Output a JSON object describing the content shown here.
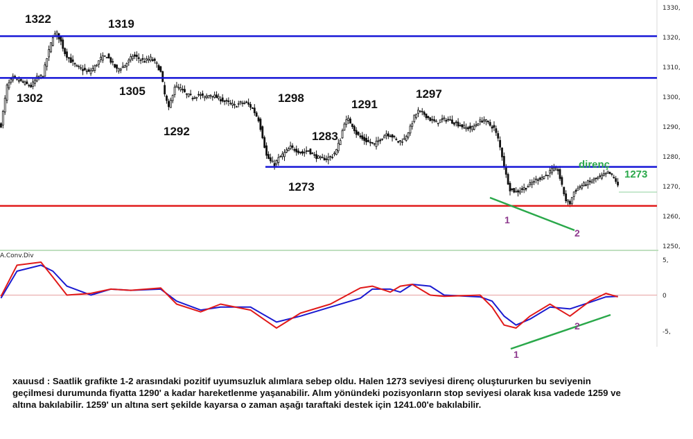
{
  "chart_data": [
    {
      "type": "candlestick",
      "symbol": "xauusd",
      "ylim": [
        1245,
        1333
      ],
      "y_ticks": [
        "1330,",
        "1320,",
        "1310,",
        "1300,",
        "1290,",
        "1280,",
        "1270,",
        "1260,",
        "1250,"
      ],
      "horizontal_levels": [
        {
          "value": 1320,
          "color": "#1515d6"
        },
        {
          "value": 1305,
          "color": "#1515d6"
        },
        {
          "value": 1273,
          "color": "#1515d6"
        },
        {
          "value": 1259,
          "color": "#e01919"
        }
      ],
      "level_labels": [
        "1322",
        "1319",
        "1302",
        "1305",
        "1292",
        "1298",
        "1283",
        "1291",
        "1297",
        "1273"
      ],
      "resistance_label": "direnç",
      "resistance_value_label": "1273",
      "divergence_points": [
        "1",
        "2"
      ],
      "close_path": [
        [
          0,
          1288
        ],
        [
          3,
          1302
        ],
        [
          6,
          1305
        ],
        [
          9,
          1304
        ],
        [
          12,
          1303
        ],
        [
          15,
          1302
        ],
        [
          18,
          1305
        ],
        [
          21,
          1306
        ],
        [
          23,
          1312
        ],
        [
          26,
          1320
        ],
        [
          28,
          1321
        ],
        [
          30,
          1318
        ],
        [
          32,
          1314
        ],
        [
          35,
          1311
        ],
        [
          38,
          1309
        ],
        [
          41,
          1308
        ],
        [
          44,
          1307
        ],
        [
          47,
          1309
        ],
        [
          50,
          1312
        ],
        [
          53,
          1313
        ],
        [
          56,
          1310
        ],
        [
          58,
          1308
        ],
        [
          61,
          1309
        ],
        [
          64,
          1311
        ],
        [
          66,
          1313
        ],
        [
          69,
          1312
        ],
        [
          72,
          1311
        ],
        [
          75,
          1312
        ],
        [
          78,
          1310
        ],
        [
          80,
          1307
        ],
        [
          82,
          1299
        ],
        [
          84,
          1294
        ],
        [
          87,
          1302
        ],
        [
          90,
          1301
        ],
        [
          93,
          1299
        ],
        [
          96,
          1298
        ],
        [
          99,
          1299
        ],
        [
          102,
          1298
        ],
        [
          105,
          1299
        ],
        [
          108,
          1298
        ],
        [
          111,
          1297
        ],
        [
          114,
          1296
        ],
        [
          117,
          1295
        ],
        [
          120,
          1296
        ],
        [
          123,
          1296
        ],
        [
          126,
          1294
        ],
        [
          129,
          1290
        ],
        [
          131,
          1284
        ],
        [
          133,
          1277
        ],
        [
          135,
          1275
        ],
        [
          137,
          1274
        ],
        [
          139,
          1276
        ],
        [
          142,
          1278
        ],
        [
          145,
          1280
        ],
        [
          148,
          1279
        ],
        [
          151,
          1278
        ],
        [
          154,
          1279
        ],
        [
          157,
          1277
        ],
        [
          160,
          1276
        ],
        [
          163,
          1276
        ],
        [
          166,
          1277
        ],
        [
          168,
          1279
        ],
        [
          170,
          1283
        ],
        [
          172,
          1289
        ],
        [
          174,
          1290
        ],
        [
          176,
          1288
        ],
        [
          178,
          1285
        ],
        [
          181,
          1283
        ],
        [
          184,
          1282
        ],
        [
          187,
          1281
        ],
        [
          190,
          1283
        ],
        [
          193,
          1285
        ],
        [
          196,
          1284
        ],
        [
          199,
          1282
        ],
        [
          202,
          1283
        ],
        [
          205,
          1287
        ],
        [
          207,
          1291
        ],
        [
          209,
          1293
        ],
        [
          212,
          1292
        ],
        [
          215,
          1290
        ],
        [
          218,
          1289
        ],
        [
          221,
          1290
        ],
        [
          224,
          1290
        ],
        [
          227,
          1289
        ],
        [
          230,
          1288
        ],
        [
          233,
          1287
        ],
        [
          236,
          1287
        ],
        [
          239,
          1289
        ],
        [
          242,
          1290
        ],
        [
          245,
          1288
        ],
        [
          247,
          1287
        ],
        [
          249,
          1283
        ],
        [
          251,
          1277
        ],
        [
          253,
          1270
        ],
        [
          255,
          1265
        ],
        [
          258,
          1264
        ],
        [
          261,
          1265
        ],
        [
          264,
          1266
        ],
        [
          267,
          1268
        ],
        [
          270,
          1269
        ],
        [
          273,
          1270
        ],
        [
          276,
          1272
        ],
        [
          279,
          1272
        ],
        [
          281,
          1266
        ],
        [
          283,
          1261
        ],
        [
          285,
          1260
        ],
        [
          287,
          1264
        ],
        [
          290,
          1266
        ],
        [
          293,
          1267
        ],
        [
          296,
          1268
        ],
        [
          299,
          1269
        ],
        [
          302,
          1270
        ],
        [
          304,
          1271
        ],
        [
          306,
          1270
        ],
        [
          308,
          1268
        ],
        [
          309,
          1266
        ]
      ]
    },
    {
      "type": "line",
      "title": "A.Conv.Div",
      "ylim": [
        -7,
        6.2
      ],
      "y_ticks": [
        "5,",
        "0",
        "-5,"
      ],
      "zero_line": 0,
      "series": [
        {
          "color": "#1a1ad0",
          "values": [
            [
              0,
              -0.5
            ],
            [
              8,
              4
            ],
            [
              20,
              5
            ],
            [
              26,
              4
            ],
            [
              33,
              1.5
            ],
            [
              45,
              0
            ],
            [
              55,
              1
            ],
            [
              65,
              0.8
            ],
            [
              80,
              1
            ],
            [
              88,
              -1
            ],
            [
              100,
              -2.5
            ],
            [
              110,
              -2
            ],
            [
              125,
              -2
            ],
            [
              138,
              -4.5
            ],
            [
              150,
              -3.5
            ],
            [
              165,
              -2
            ],
            [
              180,
              -0.5
            ],
            [
              186,
              1
            ],
            [
              195,
              1
            ],
            [
              200,
              0.5
            ],
            [
              206,
              1.8
            ],
            [
              215,
              1.5
            ],
            [
              222,
              0
            ],
            [
              240,
              -0.3
            ],
            [
              246,
              -1
            ],
            [
              252,
              -3.5
            ],
            [
              258,
              -5
            ],
            [
              265,
              -4
            ],
            [
              275,
              -2
            ],
            [
              285,
              -2.3
            ],
            [
              295,
              -1.2
            ],
            [
              303,
              -0.3
            ],
            [
              309,
              -0.2
            ]
          ]
        },
        {
          "color": "#e01919",
          "values": [
            [
              0,
              -0.2
            ],
            [
              8,
              5
            ],
            [
              20,
              5.5
            ],
            [
              26,
              3
            ],
            [
              33,
              0
            ],
            [
              45,
              0.3
            ],
            [
              55,
              1
            ],
            [
              65,
              0.8
            ],
            [
              80,
              1.2
            ],
            [
              88,
              -1.5
            ],
            [
              100,
              -2.8
            ],
            [
              110,
              -1.5
            ],
            [
              125,
              -2.5
            ],
            [
              138,
              -5.5
            ],
            [
              150,
              -3
            ],
            [
              165,
              -1.5
            ],
            [
              180,
              1.2
            ],
            [
              186,
              1.5
            ],
            [
              195,
              0.5
            ],
            [
              200,
              1.5
            ],
            [
              206,
              1.8
            ],
            [
              215,
              0
            ],
            [
              222,
              -0.2
            ],
            [
              240,
              0
            ],
            [
              246,
              -2
            ],
            [
              252,
              -5
            ],
            [
              258,
              -5.5
            ],
            [
              265,
              -3.5
            ],
            [
              275,
              -1.5
            ],
            [
              285,
              -3.5
            ],
            [
              295,
              -1
            ],
            [
              303,
              0.3
            ],
            [
              309,
              -0.3
            ]
          ]
        }
      ],
      "divergence_points": [
        "1",
        "2"
      ]
    }
  ],
  "commentary": {
    "line1": "xauusd : Saatlik grafikte 1-2 arasındaki pozitif uyumsuzluk alımlara sebep oldu. Halen 1273 seviyesi direnç oluştururken bu seviyenin",
    "line2": "geçilmesi durumunda fiyatta 1290' a kadar hareketlenme yaşanabilir. Alım yönündeki pozisyonların stop seviyesi olarak kısa vadede 1259 ve",
    "line3": "altına bakılabilir. 1259' un altına sert şekilde kayarsa o zaman aşağı taraftaki destek için 1241.00'e bakılabilir."
  }
}
